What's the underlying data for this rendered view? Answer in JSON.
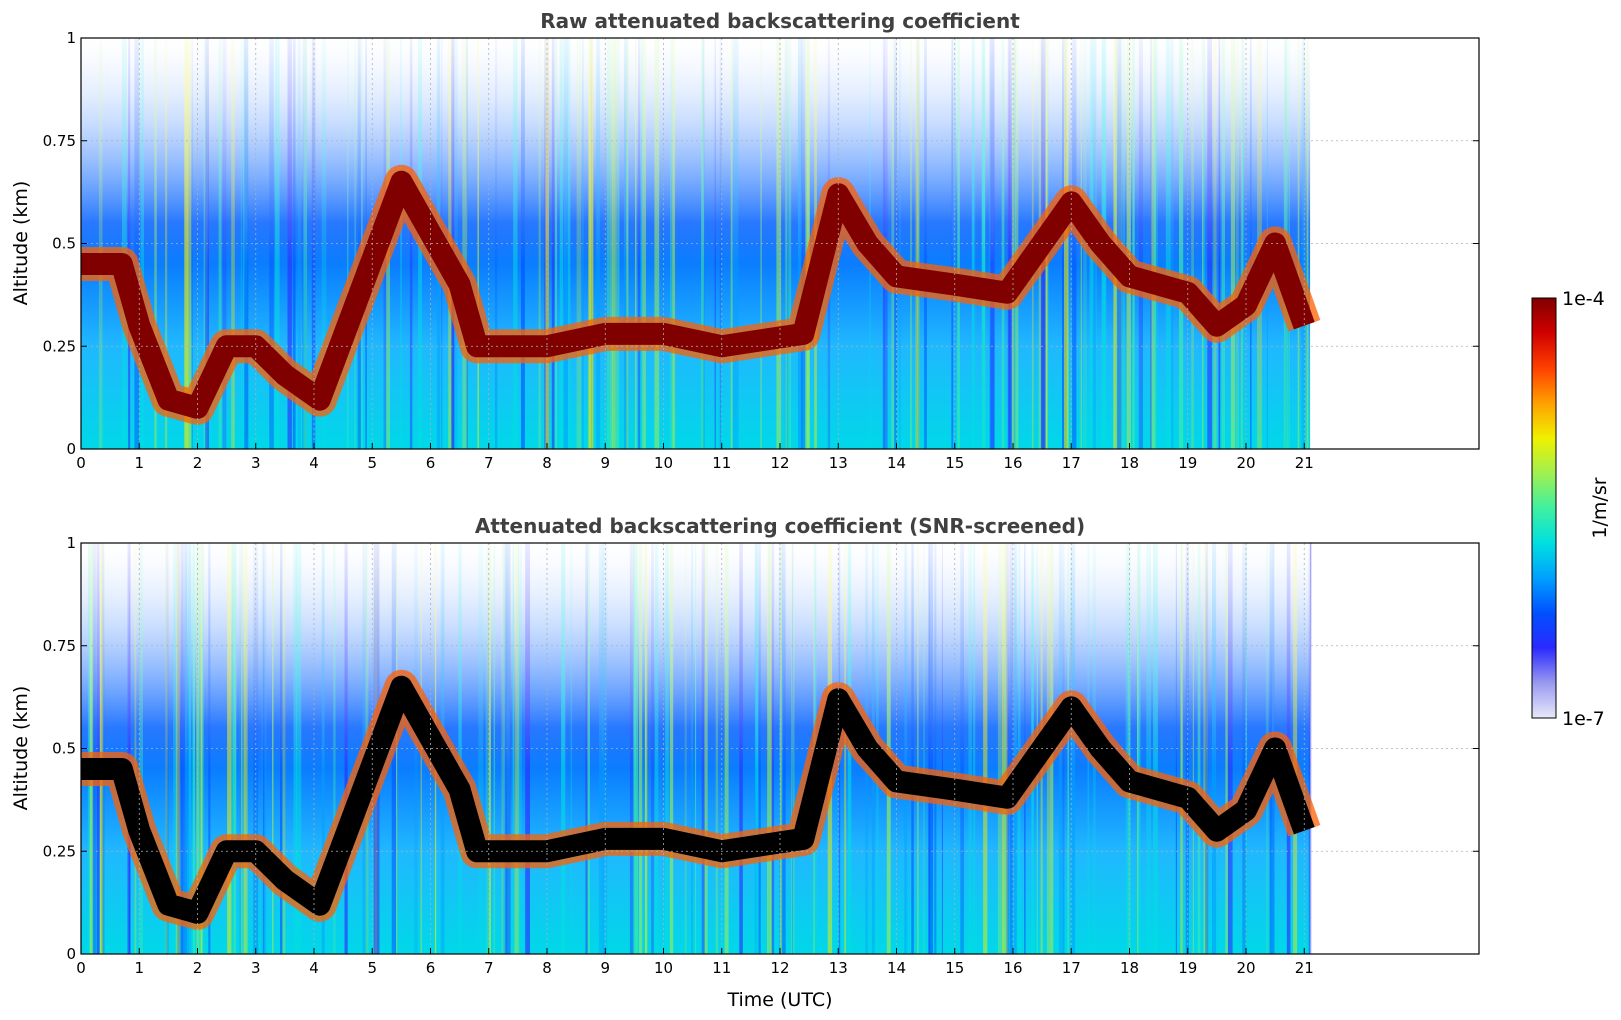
{
  "chart_data": [
    {
      "type": "heatmap",
      "title": "Raw attenuated backscattering coefficient",
      "xlabel": "",
      "ylabel": "Altitude (km)",
      "xlim": [
        0,
        24
      ],
      "ylim": [
        0,
        1
      ],
      "x_ticks": [
        "0",
        "1",
        "2",
        "3",
        "4",
        "5",
        "6",
        "7",
        "8",
        "9",
        "10",
        "11",
        "12",
        "13",
        "14",
        "15",
        "16",
        "17",
        "18",
        "19",
        "20",
        "21"
      ],
      "y_ticks": [
        "0",
        "0.25",
        "0.5",
        "0.75",
        "1"
      ],
      "data_end_time": 21.1,
      "grid": true,
      "colorscale": "jet",
      "layers": [
        {
          "feature": "cloud-layer",
          "points": [
            [
              0.0,
              0.45
            ],
            [
              0.7,
              0.45
            ],
            [
              1.0,
              0.3
            ],
            [
              1.5,
              0.12
            ],
            [
              2.0,
              0.1
            ],
            [
              2.5,
              0.25
            ],
            [
              3.0,
              0.25
            ],
            [
              3.5,
              0.18
            ],
            [
              4.1,
              0.12
            ],
            [
              5.5,
              0.65
            ],
            [
              6.5,
              0.4
            ],
            [
              6.8,
              0.25
            ],
            [
              8.0,
              0.25
            ],
            [
              9.0,
              0.28
            ],
            [
              10.0,
              0.28
            ],
            [
              11.0,
              0.25
            ],
            [
              12.4,
              0.28
            ],
            [
              13.0,
              0.62
            ],
            [
              13.5,
              0.5
            ],
            [
              14.0,
              0.42
            ],
            [
              15.0,
              0.4
            ],
            [
              15.9,
              0.38
            ],
            [
              17.0,
              0.6
            ],
            [
              17.5,
              0.5
            ],
            [
              18.0,
              0.42
            ],
            [
              19.0,
              0.38
            ],
            [
              19.5,
              0.3
            ],
            [
              20.0,
              0.35
            ],
            [
              20.5,
              0.5
            ],
            [
              21.0,
              0.3
            ]
          ]
        }
      ]
    },
    {
      "type": "heatmap",
      "title": "Attenuated backscattering coefficient (SNR-screened)",
      "xlabel": "Time (UTC)",
      "ylabel": "Altitude (km)",
      "xlim": [
        0,
        24
      ],
      "ylim": [
        0,
        1
      ],
      "x_ticks": [
        "0",
        "1",
        "2",
        "3",
        "4",
        "5",
        "6",
        "7",
        "8",
        "9",
        "10",
        "11",
        "12",
        "13",
        "14",
        "15",
        "16",
        "17",
        "18",
        "19",
        "20",
        "21"
      ],
      "y_ticks": [
        "0",
        "0.25",
        "0.5",
        "0.75",
        "1"
      ],
      "data_end_time": 21.1,
      "grid": true,
      "colorscale": "jet",
      "layers": [
        {
          "feature": "cloud-layer",
          "points": [
            [
              0.0,
              0.45
            ],
            [
              0.7,
              0.45
            ],
            [
              1.0,
              0.3
            ],
            [
              1.5,
              0.12
            ],
            [
              2.0,
              0.1
            ],
            [
              2.5,
              0.25
            ],
            [
              3.0,
              0.25
            ],
            [
              3.5,
              0.18
            ],
            [
              4.1,
              0.12
            ],
            [
              5.5,
              0.65
            ],
            [
              6.5,
              0.4
            ],
            [
              6.8,
              0.25
            ],
            [
              8.0,
              0.25
            ],
            [
              9.0,
              0.28
            ],
            [
              10.0,
              0.28
            ],
            [
              11.0,
              0.25
            ],
            [
              12.4,
              0.28
            ],
            [
              13.0,
              0.62
            ],
            [
              13.5,
              0.5
            ],
            [
              14.0,
              0.42
            ],
            [
              15.0,
              0.4
            ],
            [
              15.9,
              0.38
            ],
            [
              17.0,
              0.6
            ],
            [
              17.5,
              0.5
            ],
            [
              18.0,
              0.42
            ],
            [
              19.0,
              0.38
            ],
            [
              19.5,
              0.3
            ],
            [
              20.0,
              0.35
            ],
            [
              20.5,
              0.5
            ],
            [
              21.0,
              0.3
            ]
          ]
        }
      ]
    }
  ],
  "colorbar": {
    "label": "1/m/sr",
    "max_label": "1e-4",
    "min_label": "1e-7",
    "colors": [
      "#e8e8fa",
      "#9a9af0",
      "#2a2aff",
      "#0050ff",
      "#00a0ff",
      "#00e0e0",
      "#40f0a0",
      "#a0f050",
      "#f0f000",
      "#ffa000",
      "#ff4000",
      "#d00000",
      "#800000"
    ]
  }
}
